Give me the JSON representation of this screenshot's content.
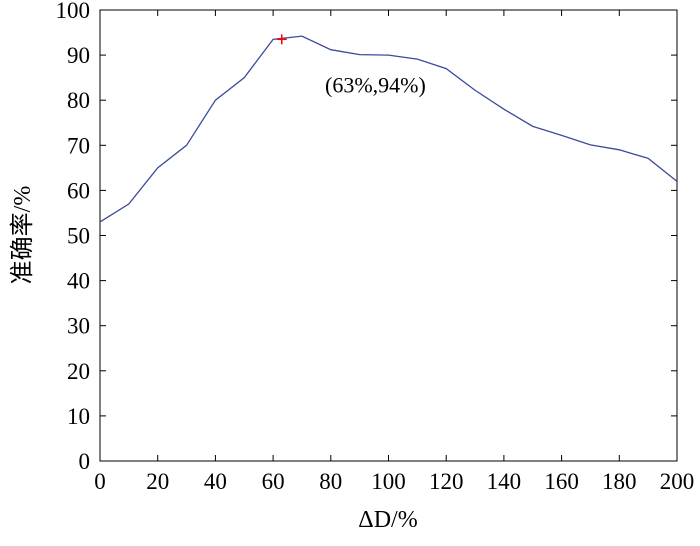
{
  "chart_data": {
    "type": "line",
    "title": "",
    "xlabel": "ΔD/%",
    "ylabel": "准确率/%",
    "xlim": [
      0,
      200
    ],
    "ylim": [
      0,
      100
    ],
    "xticks": [
      0,
      20,
      40,
      60,
      80,
      100,
      120,
      140,
      160,
      180,
      200
    ],
    "yticks": [
      0,
      10,
      20,
      30,
      40,
      50,
      60,
      70,
      80,
      90,
      100
    ],
    "grid": false,
    "legend": "none",
    "series": [
      {
        "color": "#3b4a9c",
        "x": [
          0,
          10,
          20,
          30,
          40,
          50,
          60,
          70,
          80,
          90,
          100,
          110,
          120,
          130,
          140,
          150,
          160,
          170,
          180,
          190,
          200
        ],
        "y": [
          53,
          57,
          65,
          70,
          80,
          85,
          93.5,
          94.2,
          91.2,
          90.1,
          90.0,
          89.1,
          87.0,
          82.2,
          78.0,
          74.2,
          72.2,
          70.1,
          69.0,
          67.1,
          62.0
        ]
      }
    ],
    "marker": {
      "x": 63,
      "y": 93.5,
      "symbol": "+",
      "color": "#ff0000"
    },
    "annotation": {
      "text": "(63%,94%)",
      "x": 78,
      "y": 83.5
    }
  }
}
